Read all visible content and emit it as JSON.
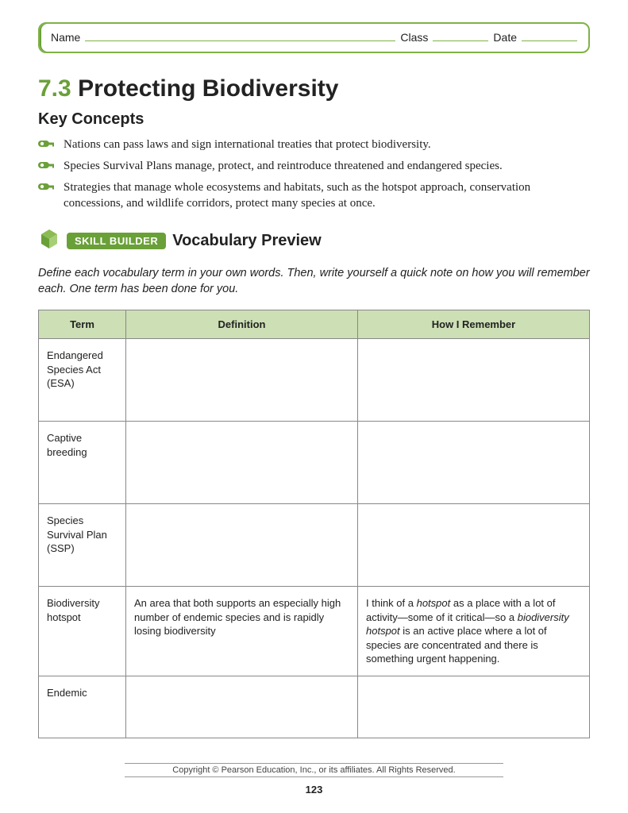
{
  "header": {
    "name_label": "Name",
    "class_label": "Class",
    "date_label": "Date"
  },
  "title": {
    "number": "7.3",
    "text": "Protecting Biodiversity"
  },
  "key_concepts": {
    "heading": "Key Concepts",
    "items": [
      "Nations can pass laws and sign international treaties that protect biodiversity.",
      "Species Survival Plans manage, protect, and reintroduce threatened and endangered species.",
      "Strategies that manage whole ecosystems and habitats, such as the hotspot approach, conservation concessions, and wildlife corridors, protect many species at once."
    ]
  },
  "skill_builder": {
    "badge": "SKILL BUILDER",
    "heading": "Vocabulary Preview"
  },
  "instructions": "Define each vocabulary term in your own words. Then, write yourself a quick note on how you will remember each. One term has been done for you.",
  "table": {
    "columns": [
      "Term",
      "Definition",
      "How I Remember"
    ],
    "header_bg": "#cddfb4",
    "border_color": "#888888",
    "rows": [
      {
        "term": "Endangered Species Act (ESA)",
        "definition": "",
        "remember": "",
        "height": "tall"
      },
      {
        "term": "Captive breeding",
        "definition": "",
        "remember": "",
        "height": "tall"
      },
      {
        "term": "Species Survival Plan (SSP)",
        "definition": "",
        "remember": "",
        "height": "tall"
      },
      {
        "term": "Biodiversity hotspot",
        "definition": "An area that both supports an especially high number of endemic species and is rapidly losing biodiversity",
        "remember_html": "I think of a <span class=\"em\">hotspot</span> as a place with a lot of activity—some of it critical—so a <span class=\"em\">biodiversity hotspot</span> is an active place where a lot of species are concentrated and there is something urgent happening.",
        "height": "tall"
      },
      {
        "term": "Endemic",
        "definition": "",
        "remember": "",
        "height": "short"
      }
    ]
  },
  "footer": {
    "copyright": "Copyright © Pearson Education, Inc., or its affiliates. All Rights Reserved.",
    "page_number": "123"
  },
  "colors": {
    "accent_green": "#6aa038",
    "border_green": "#7fb246",
    "header_cell_bg": "#cddfb4"
  },
  "icons": {
    "key": "key-icon",
    "cube": "cube-icon"
  }
}
